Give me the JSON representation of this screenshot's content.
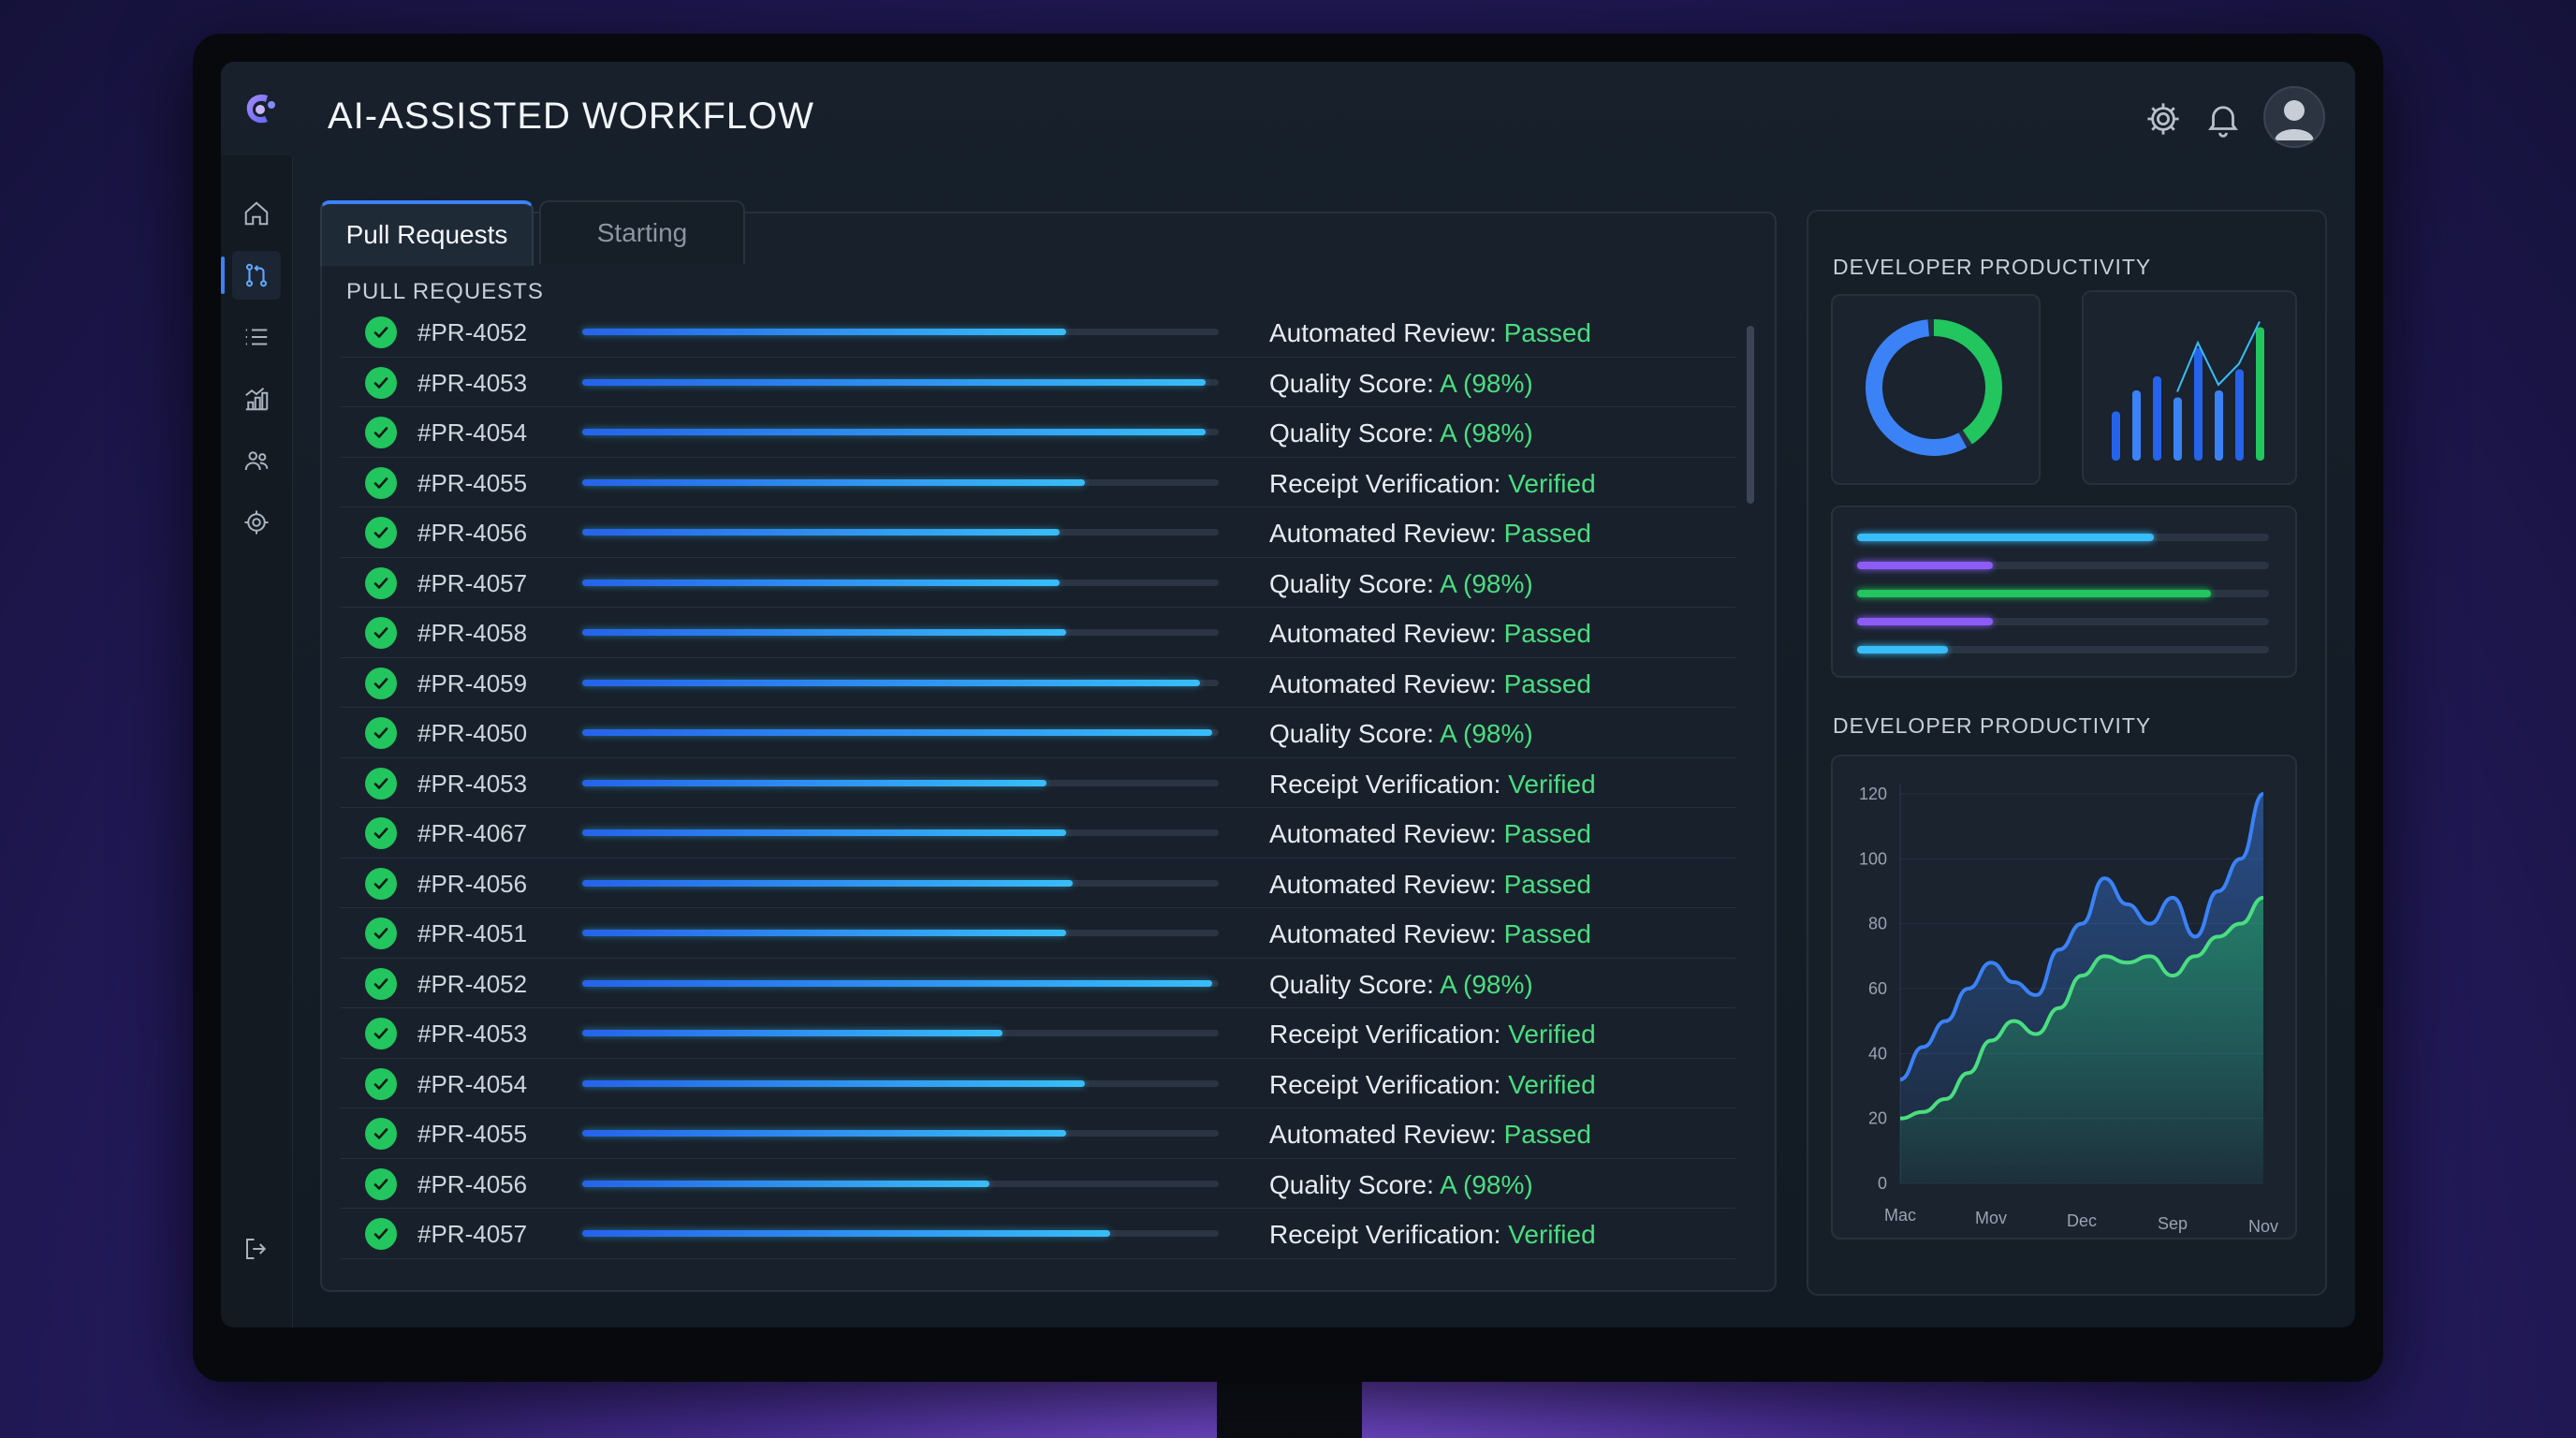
{
  "app": {
    "title": "AI-ASSISTED WORKFLOW"
  },
  "header": {
    "icons": [
      "gear-icon",
      "bell-icon",
      "user-avatar-icon"
    ]
  },
  "sidebar": {
    "items": [
      "home-icon",
      "pull-request-icon",
      "list-icon",
      "dashboard-icon",
      "team-icon",
      "settings-icon"
    ],
    "active": "pull-request-icon",
    "bottom": "logout-icon"
  },
  "tabs": [
    {
      "label": "Pull Requests",
      "active": true
    },
    {
      "label": "Starting",
      "active": false
    }
  ],
  "pr_section": {
    "title": "PULL REQUESTS",
    "rows": [
      {
        "id": "#PR-4052",
        "progress": 0.76,
        "status_label": "Automated Review:",
        "status_value": "Passed"
      },
      {
        "id": "#PR-4053",
        "progress": 0.98,
        "status_label": "Quality Score:",
        "status_value": "A (98%)"
      },
      {
        "id": "#PR-4054",
        "progress": 0.98,
        "status_label": "Quality Score:",
        "status_value": "A (98%)"
      },
      {
        "id": "#PR-4055",
        "progress": 0.79,
        "status_label": "Receipt Verification:",
        "status_value": "Verified"
      },
      {
        "id": "#PR-4056",
        "progress": 0.75,
        "status_label": "Automated Review:",
        "status_value": "Passed"
      },
      {
        "id": "#PR-4057",
        "progress": 0.75,
        "status_label": "Quality Score:",
        "status_value": "A (98%)"
      },
      {
        "id": "#PR-4058",
        "progress": 0.76,
        "status_label": "Automated Review:",
        "status_value": "Passed"
      },
      {
        "id": "#PR-4059",
        "progress": 0.97,
        "status_label": "Automated Review:",
        "status_value": "Passed"
      },
      {
        "id": "#PR-4050",
        "progress": 0.99,
        "status_label": "Quality Score:",
        "status_value": "A (98%)"
      },
      {
        "id": "#PR-4053",
        "progress": 0.73,
        "status_label": "Receipt Verification:",
        "status_value": "Verified"
      },
      {
        "id": "#PR-4067",
        "progress": 0.76,
        "status_label": "Automated Review:",
        "status_value": "Passed"
      },
      {
        "id": "#PR-4056",
        "progress": 0.77,
        "status_label": "Automated Review:",
        "status_value": "Passed"
      },
      {
        "id": "#PR-4051",
        "progress": 0.76,
        "status_label": "Automated Review:",
        "status_value": "Passed"
      },
      {
        "id": "#PR-4052",
        "progress": 0.99,
        "status_label": "Quality Score:",
        "status_value": "A (98%)"
      },
      {
        "id": "#PR-4053",
        "progress": 0.66,
        "status_label": "Receipt Verification:",
        "status_value": "Verified"
      },
      {
        "id": "#PR-4054",
        "progress": 0.79,
        "status_label": "Receipt Verification:",
        "status_value": "Verified"
      },
      {
        "id": "#PR-4055",
        "progress": 0.76,
        "status_label": "Automated Review:",
        "status_value": "Passed"
      },
      {
        "id": "#PR-4056",
        "progress": 0.64,
        "status_label": "Quality Score:",
        "status_value": "A (98%)"
      },
      {
        "id": "#PR-4057",
        "progress": 0.83,
        "status_label": "Receipt Verification:",
        "status_value": "Verified"
      }
    ]
  },
  "productivity_top": {
    "title": "DEVELOPER PRODUCTIVITY",
    "donut": {
      "segments": [
        {
          "value": 0.42,
          "color": "#22c55e"
        },
        {
          "value": 0.58,
          "color": "#3b82f6"
        }
      ]
    },
    "mini_bars": [
      0.35,
      0.5,
      0.6,
      0.45,
      0.8,
      0.5,
      0.65,
      0.95
    ],
    "progress_bars": [
      {
        "value": 0.72,
        "color": "#38bdf8"
      },
      {
        "value": 0.33,
        "color": "#8b5cf6"
      },
      {
        "value": 0.86,
        "color": "#22c55e"
      },
      {
        "value": 0.33,
        "color": "#8b5cf6"
      },
      {
        "value": 0.22,
        "color": "#38bdf8"
      }
    ]
  },
  "productivity_chart": {
    "title": "DEVELOPER PRODUCTIVITY",
    "chart_data": {
      "type": "area",
      "title": "DEVELOPER PRODUCTIVITY",
      "x": [
        0,
        1,
        2,
        3,
        4,
        5,
        6,
        7,
        8,
        9,
        10,
        11,
        12,
        13,
        14,
        15,
        16
      ],
      "xticks": [
        "Mac",
        "Mov",
        "Dec",
        "Sep",
        "Nov"
      ],
      "yticks": [
        "0",
        "20",
        "40",
        "60",
        "80",
        "100",
        "120"
      ],
      "ylim": [
        0,
        120
      ],
      "series": [
        {
          "name": "blue",
          "color": "#3b82f6",
          "values": [
            32,
            42,
            50,
            60,
            68,
            62,
            58,
            72,
            80,
            94,
            86,
            80,
            88,
            76,
            90,
            100,
            120
          ]
        },
        {
          "name": "green",
          "color": "#4ade80",
          "values": [
            20,
            22,
            26,
            34,
            44,
            50,
            46,
            54,
            64,
            70,
            68,
            70,
            64,
            70,
            76,
            80,
            88
          ]
        }
      ]
    }
  }
}
